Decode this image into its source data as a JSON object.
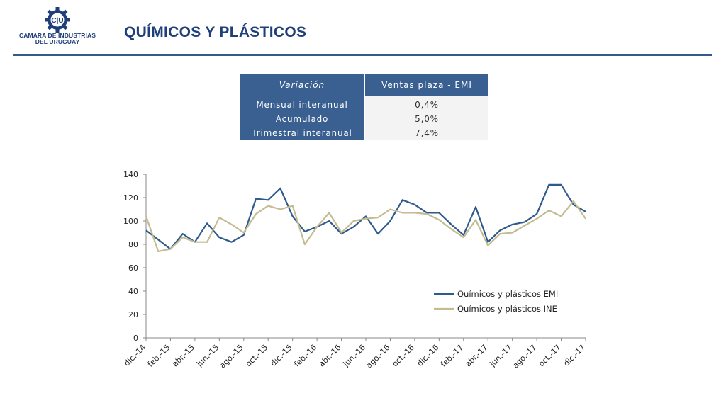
{
  "header": {
    "org_line1": "CAMARA DE INDUSTRIAS",
    "org_line2": "DEL URUGUAY",
    "logo_text": "C|U",
    "title": "QUÍMICOS Y PLÁSTICOS"
  },
  "table": {
    "col1": "Variación",
    "col2": "Ventas plaza - EMI",
    "rows": [
      {
        "label": "Mensual interanual",
        "value": "0,4%"
      },
      {
        "label": "Acumulado",
        "value": "5,0%"
      },
      {
        "label": "Trimestral interanual",
        "value": "7,4%"
      }
    ]
  },
  "colors": {
    "brand": "#1f3f7a",
    "emi": "#2e5a8c",
    "ine": "#c4bb91",
    "table_header": "#3a5f91"
  },
  "chart_data": {
    "type": "line",
    "x": [
      "dic.-14",
      "ene.-15",
      "feb.-15",
      "mar.-15",
      "abr.-15",
      "may.-15",
      "jun.-15",
      "jul.-15",
      "ago.-15",
      "sep.-15",
      "oct.-15",
      "nov.-15",
      "dic.-15",
      "ene.-16",
      "feb.-16",
      "mar.-16",
      "abr.-16",
      "may.-16",
      "jun.-16",
      "jul.-16",
      "ago.-16",
      "sep.-16",
      "oct.-16",
      "nov.-16",
      "dic.-16",
      "ene.-17",
      "feb.-17",
      "mar.-17",
      "abr.-17",
      "may.-17",
      "jun.-17",
      "jul.-17",
      "ago.-17",
      "sep.-17",
      "oct.-17",
      "nov.-17",
      "dic.-17"
    ],
    "tick_labels": [
      "dic.-14",
      "feb.-15",
      "abr.-15",
      "jun.-15",
      "ago.-15",
      "oct.-15",
      "dic.-15",
      "feb.-16",
      "abr.-16",
      "jun.-16",
      "ago.-16",
      "oct.-16",
      "dic.-16",
      "feb.-17",
      "abr.-17",
      "jun.-17",
      "ago.-17",
      "oct.-17",
      "dic.-17"
    ],
    "series": [
      {
        "name": "Químicos y plásticos EMI",
        "values": [
          92,
          84,
          76,
          89,
          82,
          98,
          86,
          82,
          88,
          119,
          118,
          128,
          104,
          91,
          95,
          100,
          89,
          95,
          104,
          89,
          100,
          118,
          114,
          107,
          107,
          97,
          88,
          112,
          82,
          92,
          97,
          99,
          106,
          131,
          131,
          114,
          108
        ]
      },
      {
        "name": "Químicos y plásticos INE",
        "values": [
          104,
          74,
          76,
          86,
          82,
          82,
          103,
          97,
          90,
          106,
          113,
          110,
          113,
          80,
          95,
          107,
          90,
          100,
          102,
          103,
          110,
          107,
          107,
          106,
          101,
          93,
          86,
          101,
          79,
          89,
          90,
          96,
          102,
          109,
          104,
          117,
          102
        ]
      }
    ],
    "ylim": [
      0,
      140
    ],
    "yticks": [
      0,
      20,
      40,
      60,
      80,
      100,
      120,
      140
    ],
    "legend": "right",
    "grid": false
  }
}
